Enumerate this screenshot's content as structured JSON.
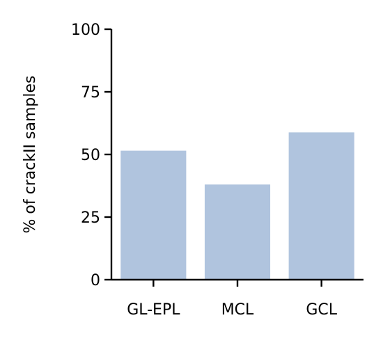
{
  "chart_data": {
    "type": "bar",
    "title": "",
    "xlabel": "",
    "ylabel": "% of crackII samples",
    "categories": [
      "GL-EPL",
      "MCL",
      "GCL"
    ],
    "values": [
      51.5,
      38,
      58.8
    ],
    "ylim": [
      0,
      100
    ],
    "yticks": [
      0,
      25,
      50,
      75,
      100
    ],
    "ytick_labels": [
      "0",
      "25",
      "50",
      "75",
      "100"
    ],
    "bar_color": "#b0c4de",
    "grid": false,
    "legend": "none"
  }
}
